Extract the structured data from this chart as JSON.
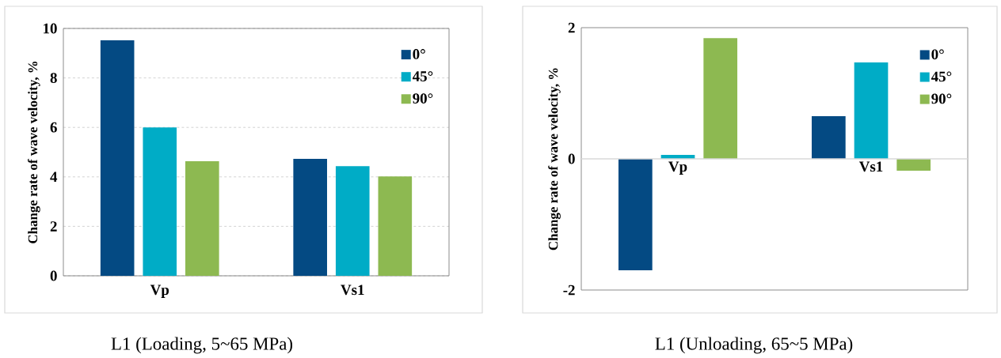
{
  "chart_data": [
    {
      "type": "bar",
      "title": "L1 (Loading, 5~65 MPa)",
      "ylabel": "Change rate of wave velocity, %",
      "categories": [
        "Vp",
        "Vs1"
      ],
      "series": [
        {
          "name": "0°",
          "color": "#044a83",
          "values": [
            9.52,
            4.73
          ]
        },
        {
          "name": "45°",
          "color": "#00acc6",
          "values": [
            6.0,
            4.43
          ]
        },
        {
          "name": "90°",
          "color": "#8db951",
          "values": [
            4.63,
            4.02
          ]
        }
      ],
      "ylim": [
        0,
        10
      ],
      "yticks": [
        0,
        2,
        4,
        6,
        8,
        10
      ],
      "grid": "y",
      "legend": "top right"
    },
    {
      "type": "bar",
      "title": "L1 (Unloading, 65~5 MPa)",
      "ylabel": "Change rate of wave velocity, %",
      "categories": [
        "Vp",
        "Vs1"
      ],
      "series": [
        {
          "name": "0°",
          "color": "#044a83",
          "values": [
            -1.7,
            0.65
          ]
        },
        {
          "name": "45°",
          "color": "#00acc6",
          "values": [
            0.06,
            1.47
          ]
        },
        {
          "name": "90°",
          "color": "#8db951",
          "values": [
            1.84,
            -0.18
          ]
        }
      ],
      "ylim": [
        -2,
        2
      ],
      "yticks": [
        -2,
        0,
        2
      ],
      "legend": "top right"
    }
  ]
}
